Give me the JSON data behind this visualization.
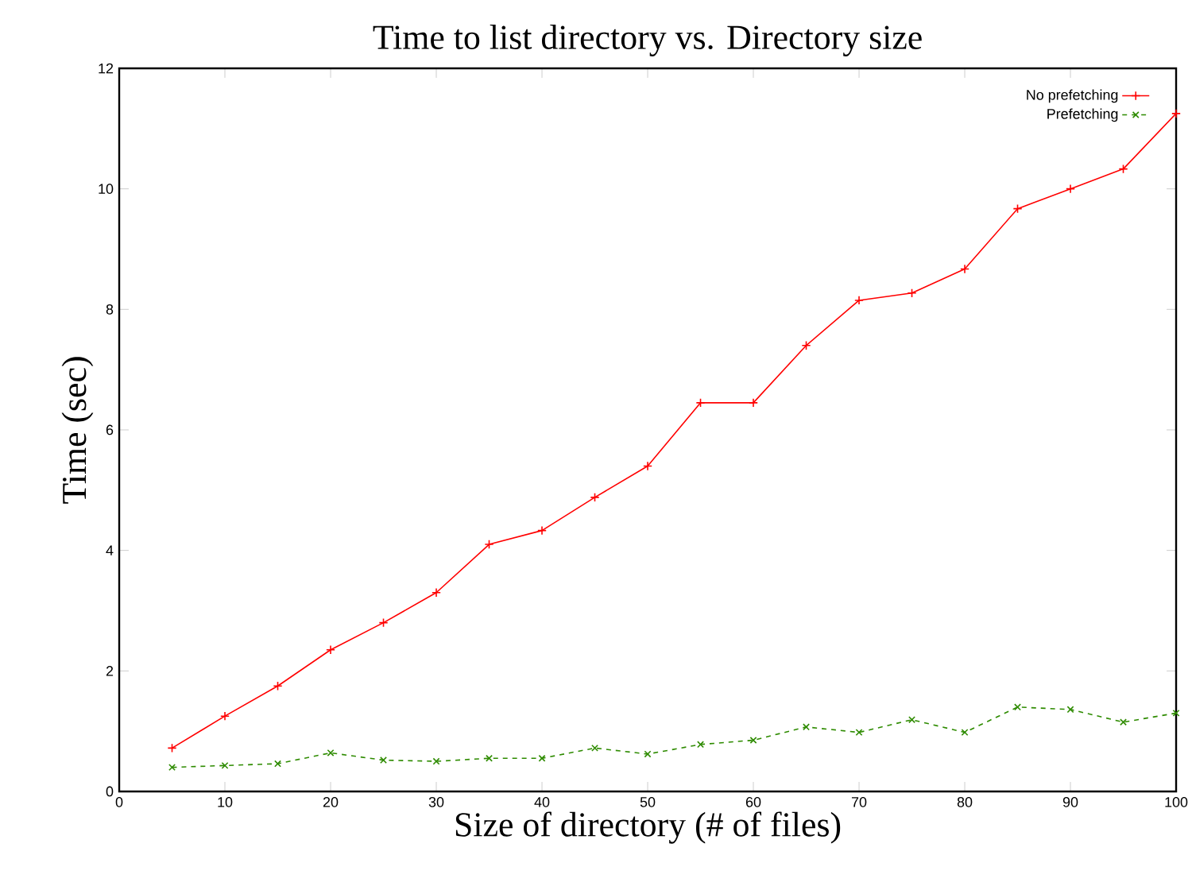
{
  "chart_data": {
    "type": "line",
    "title": "Time to list directory vs. Directory size",
    "xlabel": "Size of directory (# of files)",
    "ylabel": "Time (sec)",
    "x": [
      5,
      10,
      15,
      20,
      25,
      30,
      35,
      40,
      45,
      50,
      55,
      60,
      65,
      70,
      75,
      80,
      85,
      90,
      95,
      100
    ],
    "series": [
      {
        "name": "No prefetching",
        "color": "#ff0000",
        "line_style": "solid",
        "marker": "plus",
        "values": [
          0.72,
          1.25,
          1.75,
          2.35,
          2.8,
          3.3,
          4.1,
          4.33,
          4.88,
          5.4,
          6.45,
          6.45,
          7.4,
          8.15,
          8.27,
          8.67,
          9.67,
          10.0,
          10.33,
          11.25
        ]
      },
      {
        "name": "Prefetching",
        "color": "#2e8b00",
        "line_style": "dashed",
        "marker": "cross",
        "values": [
          0.4,
          0.43,
          0.46,
          0.64,
          0.52,
          0.5,
          0.55,
          0.55,
          0.72,
          0.62,
          0.78,
          0.85,
          1.07,
          0.98,
          1.19,
          0.98,
          1.4,
          1.36,
          1.15,
          1.3
        ]
      }
    ],
    "xlim": [
      0,
      100
    ],
    "ylim": [
      0,
      12
    ],
    "xticks": [
      0,
      10,
      20,
      30,
      40,
      50,
      60,
      70,
      80,
      90,
      100
    ],
    "yticks": [
      0,
      2,
      4,
      6,
      8,
      10,
      12
    ],
    "legend": "top right"
  }
}
